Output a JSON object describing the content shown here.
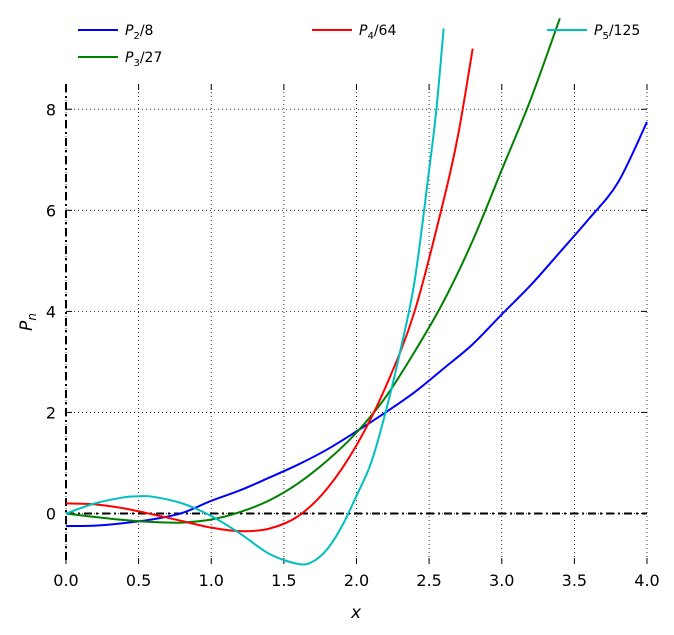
{
  "chart_data": {
    "type": "line",
    "title": "",
    "xlabel": "x",
    "ylabel": "P",
    "ylabel_sub": "n",
    "xlim": [
      0,
      4
    ],
    "ylim": [
      -1,
      8.5
    ],
    "xticks": [
      {
        "value": 0,
        "label": "0.0"
      },
      {
        "value": 0.5,
        "label": "0.5"
      },
      {
        "value": 1,
        "label": "1.0"
      },
      {
        "value": 1.5,
        "label": "1.5"
      },
      {
        "value": 2,
        "label": "2.0"
      },
      {
        "value": 2.5,
        "label": "2.5"
      },
      {
        "value": 3,
        "label": "3.0"
      },
      {
        "value": 3.5,
        "label": "3.5"
      },
      {
        "value": 4,
        "label": "4.0"
      }
    ],
    "yticks": [
      {
        "value": 0,
        "label": "0"
      },
      {
        "value": 2,
        "label": "2"
      },
      {
        "value": 4,
        "label": "4"
      },
      {
        "value": 6,
        "label": "6"
      },
      {
        "value": 8,
        "label": "8"
      }
    ],
    "grid": true,
    "legend_position": "top",
    "reference_lines": [
      {
        "orientation": "horizontal",
        "value": 0,
        "style": "dash-dot",
        "color": "#000000"
      },
      {
        "orientation": "vertical",
        "value": 0,
        "style": "dash-dot",
        "color": "#000000"
      }
    ],
    "series": [
      {
        "name": "P2/8",
        "label_main": "P",
        "label_sub": "2",
        "label_rest": "/8",
        "color": "#0000ff",
        "x": [
          0,
          0.2,
          0.4,
          0.6,
          0.8,
          1.0,
          1.2,
          1.4,
          1.6,
          1.8,
          2.0,
          2.2,
          2.4,
          2.6,
          2.8,
          3.0,
          3.2,
          3.4,
          3.6,
          3.8,
          4.0
        ],
        "values": [
          -0.25,
          -0.24,
          -0.19,
          -0.115,
          0.01,
          0.25,
          0.46,
          0.71,
          0.97,
          1.27,
          1.625,
          2.0,
          2.4,
          2.87,
          3.35,
          3.94,
          4.52,
          5.17,
          5.83,
          6.55,
          7.75
        ]
      },
      {
        "name": "P3/27",
        "label_main": "P",
        "label_sub": "3",
        "label_rest": "/27",
        "color": "#008000",
        "x": [
          0,
          0.2,
          0.4,
          0.6,
          0.8,
          1.0,
          1.2,
          1.4,
          1.6,
          1.8,
          2.0,
          2.2,
          2.4,
          2.6,
          2.8,
          3.0,
          3.2,
          3.4
        ],
        "values": [
          0.0,
          -0.07,
          -0.13,
          -0.17,
          -0.18,
          -0.12,
          0.03,
          0.26,
          0.6,
          1.05,
          1.6,
          2.3,
          3.2,
          4.2,
          5.4,
          6.8,
          8.2,
          9.8
        ]
      },
      {
        "name": "P4/64",
        "label_main": "P",
        "label_sub": "4",
        "label_rest": "/64",
        "color": "#ff0000",
        "x": [
          0,
          0.2,
          0.4,
          0.6,
          0.8,
          1.0,
          1.2,
          1.4,
          1.6,
          1.8,
          2.0,
          2.2,
          2.4,
          2.6,
          2.7,
          2.8
        ],
        "values": [
          0.2,
          0.18,
          0.1,
          -0.02,
          -0.15,
          -0.28,
          -0.35,
          -0.3,
          -0.05,
          0.5,
          1.35,
          2.5,
          4.0,
          6.2,
          7.5,
          9.2
        ]
      },
      {
        "name": "P5/125",
        "label_main": "P",
        "label_sub": "5",
        "label_rest": "/125",
        "color": "#00bfbf",
        "x": [
          0,
          0.2,
          0.4,
          0.5,
          0.6,
          0.8,
          1.0,
          1.2,
          1.4,
          1.6,
          1.7,
          1.8,
          1.9,
          2.0,
          2.1,
          2.2,
          2.3,
          2.4,
          2.5,
          2.55,
          2.6
        ],
        "values": [
          0.0,
          0.2,
          0.32,
          0.34,
          0.33,
          0.2,
          -0.05,
          -0.4,
          -0.8,
          -1.0,
          -0.95,
          -0.7,
          -0.25,
          0.35,
          1.0,
          2.0,
          3.2,
          4.6,
          6.8,
          8.0,
          9.6
        ]
      }
    ]
  }
}
